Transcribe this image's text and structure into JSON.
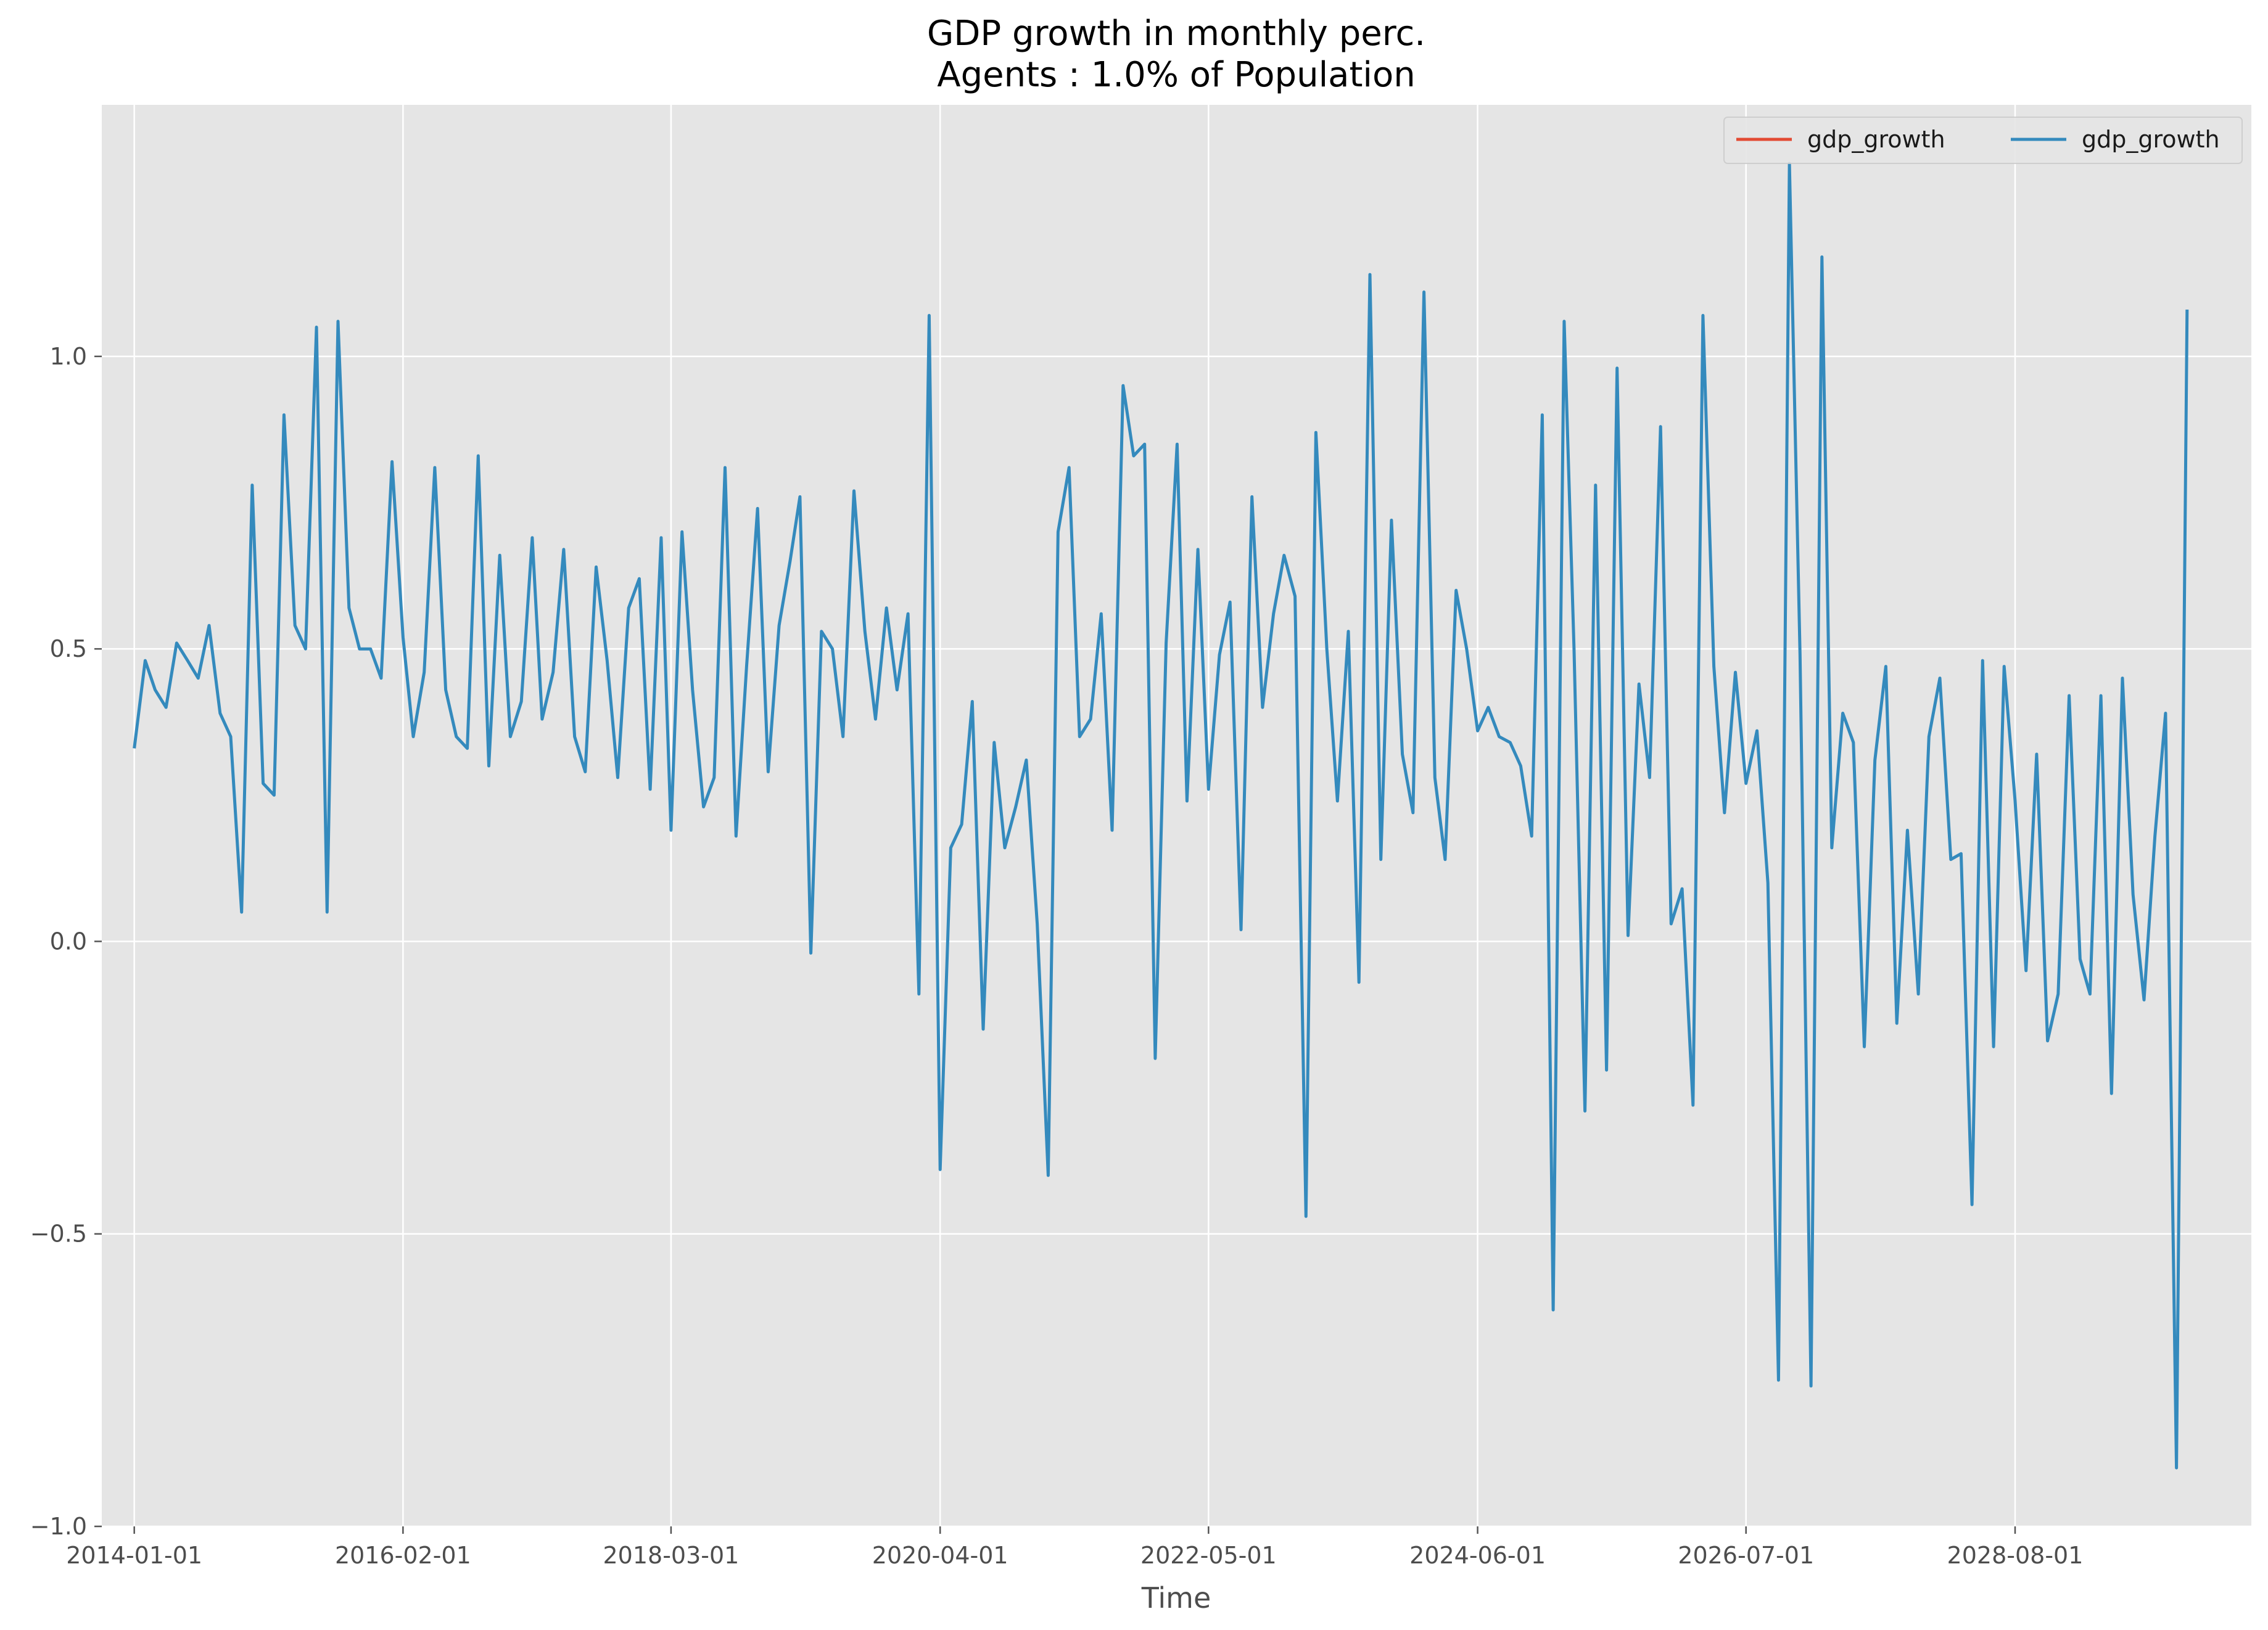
{
  "chart_data": {
    "type": "line",
    "title_line1": "GDP growth in monthly perc.",
    "title_line2": "Agents : 1.0% of Population",
    "xlabel": "Time",
    "ylabel": "",
    "x_start": "2014-01-01",
    "x_frequency": "monthly",
    "x_ticks": [
      "2014-01-01",
      "2016-02-01",
      "2018-03-01",
      "2020-04-01",
      "2022-05-01",
      "2024-06-01",
      "2026-07-01",
      "2028-08-01"
    ],
    "y_ticks": [
      "−1.0",
      "−0.5",
      "0.0",
      "0.5",
      "1.0"
    ],
    "y_tick_values": [
      -1.0,
      -0.5,
      0.0,
      0.5,
      1.0
    ],
    "xlim": [
      "2013-10-01",
      "2030-06-01"
    ],
    "ylim": [
      -1.0,
      1.43
    ],
    "grid": true,
    "legend_position": "top-right",
    "colors": {
      "background": "#e5e5e5",
      "grid": "#ffffff",
      "series_1": "#e24a33",
      "series_2": "#348abd"
    },
    "series": [
      {
        "name": "gdp_growth",
        "values": []
      },
      {
        "name": "gdp_growth",
        "values": [
          0.33,
          0.48,
          0.43,
          0.4,
          0.51,
          0.48,
          0.45,
          0.54,
          0.39,
          0.35,
          0.05,
          0.78,
          0.27,
          0.25,
          0.9,
          0.54,
          0.5,
          1.05,
          0.05,
          1.06,
          0.57,
          0.5,
          0.5,
          0.45,
          0.82,
          0.52,
          0.35,
          0.46,
          0.81,
          0.43,
          0.35,
          0.33,
          0.83,
          0.3,
          0.66,
          0.35,
          0.41,
          0.69,
          0.38,
          0.46,
          0.67,
          0.35,
          0.29,
          0.64,
          0.48,
          0.28,
          0.57,
          0.62,
          0.26,
          0.69,
          0.19,
          0.7,
          0.43,
          0.23,
          0.28,
          0.81,
          0.18,
          0.47,
          0.74,
          0.29,
          0.54,
          0.65,
          0.76,
          -0.02,
          0.53,
          0.5,
          0.35,
          0.77,
          0.53,
          0.38,
          0.57,
          0.43,
          0.56,
          -0.09,
          1.07,
          -0.39,
          0.16,
          0.2,
          0.41,
          -0.15,
          0.34,
          0.16,
          0.23,
          0.31,
          0.03,
          -0.4,
          0.7,
          0.81,
          0.35,
          0.38,
          0.56,
          0.19,
          0.95,
          0.83,
          0.85,
          -0.2,
          0.51,
          0.85,
          0.24,
          0.67,
          0.26,
          0.49,
          0.58,
          0.02,
          0.76,
          0.4,
          0.56,
          0.66,
          0.59,
          -0.47,
          0.87,
          0.5,
          0.24,
          0.53,
          -0.07,
          1.14,
          0.14,
          0.72,
          0.32,
          0.22,
          1.11,
          0.28,
          0.14,
          0.6,
          0.5,
          0.36,
          0.4,
          0.35,
          0.34,
          0.3,
          0.18,
          0.9,
          -0.63,
          1.06,
          0.5,
          -0.29,
          0.78,
          -0.22,
          0.98,
          0.01,
          0.44,
          0.28,
          0.88,
          0.03,
          0.09,
          -0.28,
          1.07,
          0.47,
          0.22,
          0.46,
          0.27,
          0.36,
          0.1,
          -0.75,
          1.33,
          0.49,
          -0.76,
          1.17,
          0.16,
          0.39,
          0.34,
          -0.18,
          0.31,
          0.47,
          -0.14,
          0.19,
          -0.09,
          0.35,
          0.45,
          0.14,
          0.15,
          -0.45,
          0.48,
          -0.18,
          0.47,
          0.24,
          -0.05,
          0.32,
          -0.17,
          -0.09,
          0.42,
          -0.03,
          -0.09,
          0.42,
          -0.26,
          0.45,
          0.08,
          -0.1,
          0.18,
          0.39,
          -0.9,
          1.08
        ]
      }
    ]
  }
}
